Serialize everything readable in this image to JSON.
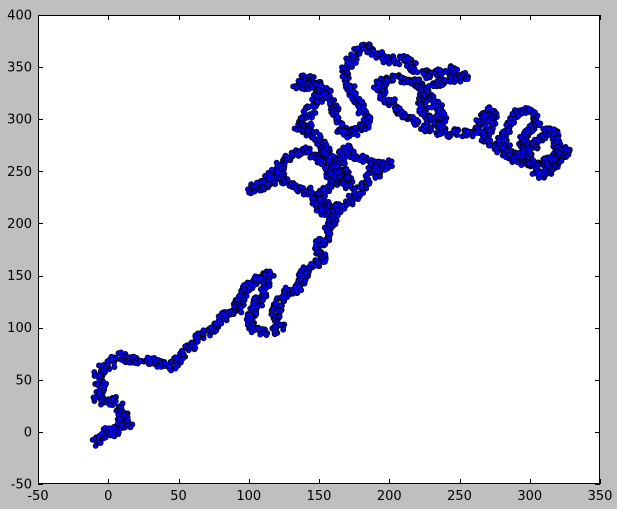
{
  "chart_data": {
    "type": "scatter",
    "title": "",
    "xlabel": "",
    "ylabel": "",
    "xlim": [
      -50,
      350
    ],
    "ylim": [
      -50,
      400
    ],
    "x_ticks": [
      -50,
      0,
      50,
      100,
      150,
      200,
      250,
      300,
      350
    ],
    "y_ticks": [
      -50,
      0,
      50,
      100,
      150,
      200,
      250,
      300,
      350,
      400
    ],
    "grid": false,
    "legend": "none",
    "marker": "circle",
    "marker_color": "#0000ff",
    "marker_edge_color": "#000000",
    "background_color": "#ffffff",
    "figure_color": "#bfbfbf",
    "random_walk_path": [
      [
        -10,
        -12
      ],
      [
        -5,
        -5
      ],
      [
        -2,
        2
      ],
      [
        2,
        0
      ],
      [
        5,
        -2
      ],
      [
        8,
        5
      ],
      [
        12,
        15
      ],
      [
        14,
        5
      ],
      [
        10,
        15
      ],
      [
        7,
        25
      ],
      [
        4,
        30
      ],
      [
        -2,
        28
      ],
      [
        -8,
        33
      ],
      [
        -4,
        43
      ],
      [
        -8,
        53
      ],
      [
        -5,
        60
      ],
      [
        2,
        65
      ],
      [
        5,
        72
      ],
      [
        10,
        73
      ],
      [
        15,
        66
      ],
      [
        20,
        70
      ],
      [
        28,
        68
      ],
      [
        32,
        69
      ],
      [
        38,
        65
      ],
      [
        45,
        62
      ],
      [
        50,
        70
      ],
      [
        55,
        78
      ],
      [
        60,
        85
      ],
      [
        65,
        92
      ],
      [
        70,
        96
      ],
      [
        75,
        100
      ],
      [
        78,
        108
      ],
      [
        85,
        113
      ],
      [
        92,
        117
      ],
      [
        95,
        130
      ],
      [
        100,
        140
      ],
      [
        105,
        145
      ],
      [
        108,
        150
      ],
      [
        115,
        152
      ],
      [
        112,
        140
      ],
      [
        105,
        120
      ],
      [
        100,
        103
      ],
      [
        105,
        98
      ],
      [
        115,
        95
      ],
      [
        122,
        100
      ],
      [
        118,
        112
      ],
      [
        122,
        125
      ],
      [
        128,
        135
      ],
      [
        135,
        138
      ],
      [
        140,
        152
      ],
      [
        147,
        162
      ],
      [
        152,
        163
      ],
      [
        150,
        175
      ],
      [
        150,
        180
      ],
      [
        155,
        188
      ],
      [
        157,
        196
      ],
      [
        160,
        205
      ],
      [
        162,
        212
      ],
      [
        156,
        218
      ],
      [
        148,
        222
      ],
      [
        145,
        230
      ],
      [
        140,
        232
      ],
      [
        130,
        238
      ],
      [
        122,
        245
      ],
      [
        115,
        238
      ],
      [
        108,
        235
      ],
      [
        102,
        232
      ],
      [
        110,
        240
      ],
      [
        120,
        250
      ],
      [
        125,
        258
      ],
      [
        130,
        265
      ],
      [
        140,
        270
      ],
      [
        150,
        262
      ],
      [
        158,
        250
      ],
      [
        165,
        240
      ],
      [
        172,
        235
      ],
      [
        168,
        250
      ],
      [
        165,
        262
      ],
      [
        170,
        272
      ],
      [
        175,
        265
      ],
      [
        182,
        260
      ],
      [
        192,
        255
      ],
      [
        200,
        258
      ],
      [
        195,
        250
      ],
      [
        187,
        245
      ],
      [
        182,
        238
      ],
      [
        178,
        232
      ],
      [
        175,
        225
      ],
      [
        170,
        218
      ],
      [
        160,
        215
      ],
      [
        152,
        210
      ],
      [
        148,
        220
      ],
      [
        155,
        235
      ],
      [
        162,
        248
      ],
      [
        158,
        262
      ],
      [
        152,
        275
      ],
      [
        145,
        285
      ],
      [
        140,
        295
      ],
      [
        135,
        290
      ],
      [
        142,
        305
      ],
      [
        148,
        318
      ],
      [
        152,
        328
      ],
      [
        147,
        336
      ],
      [
        140,
        340
      ],
      [
        135,
        332
      ],
      [
        145,
        333
      ],
      [
        155,
        326
      ],
      [
        160,
        315
      ],
      [
        162,
        302
      ],
      [
        165,
        290
      ],
      [
        172,
        285
      ],
      [
        180,
        290
      ],
      [
        185,
        300
      ],
      [
        180,
        310
      ],
      [
        175,
        322
      ],
      [
        172,
        332
      ],
      [
        168,
        345
      ],
      [
        172,
        355
      ],
      [
        178,
        365
      ],
      [
        184,
        370
      ],
      [
        190,
        363
      ],
      [
        198,
        358
      ],
      [
        205,
        355
      ],
      [
        210,
        360
      ],
      [
        215,
        352
      ],
      [
        222,
        345
      ],
      [
        230,
        342
      ],
      [
        238,
        345
      ],
      [
        243,
        348
      ],
      [
        250,
        345
      ],
      [
        254,
        340
      ],
      [
        240,
        338
      ],
      [
        228,
        330
      ],
      [
        223,
        318
      ],
      [
        225,
        308
      ],
      [
        230,
        300
      ],
      [
        228,
        290
      ],
      [
        218,
        298
      ],
      [
        210,
        305
      ],
      [
        205,
        312
      ],
      [
        200,
        318
      ],
      [
        195,
        325
      ],
      [
        192,
        335
      ],
      [
        200,
        340
      ],
      [
        210,
        338
      ],
      [
        220,
        335
      ],
      [
        228,
        320
      ],
      [
        235,
        312
      ],
      [
        238,
        300
      ],
      [
        236,
        288
      ],
      [
        240,
        285
      ],
      [
        248,
        288
      ],
      [
        255,
        286
      ],
      [
        262,
        290
      ],
      [
        268,
        302
      ],
      [
        272,
        310
      ],
      [
        275,
        300
      ],
      [
        270,
        290
      ],
      [
        268,
        280
      ],
      [
        275,
        275
      ],
      [
        282,
        268
      ],
      [
        290,
        262
      ],
      [
        298,
        258
      ],
      [
        305,
        255
      ],
      [
        312,
        260
      ],
      [
        320,
        268
      ],
      [
        326,
        272
      ],
      [
        322,
        262
      ],
      [
        315,
        255
      ],
      [
        310,
        245
      ],
      [
        305,
        250
      ],
      [
        300,
        262
      ],
      [
        295,
        275
      ],
      [
        298,
        288
      ],
      [
        305,
        298
      ],
      [
        300,
        308
      ],
      [
        292,
        305
      ],
      [
        285,
        295
      ],
      [
        280,
        282
      ],
      [
        285,
        270
      ],
      [
        292,
        262
      ],
      [
        300,
        270
      ],
      [
        308,
        282
      ],
      [
        315,
        290
      ],
      [
        320,
        280
      ],
      [
        318,
        265
      ],
      [
        312,
        258
      ]
    ],
    "jitter_seed": 12345
  }
}
